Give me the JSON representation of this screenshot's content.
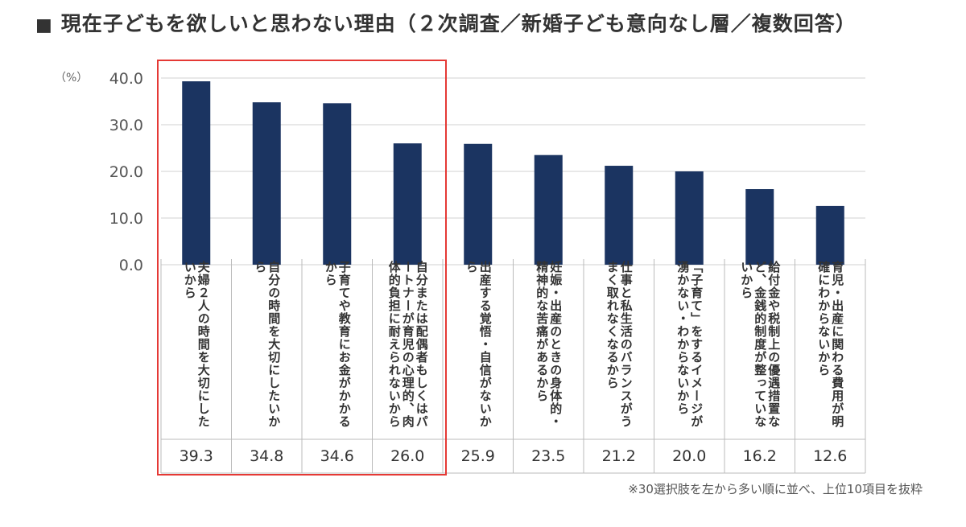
{
  "title": "現在子どもを欲しいと思わない理由（２次調査／新婚子ども意向なし層／複数回答）",
  "title_marker": "■",
  "unit_label": "（%）",
  "footnote": "※30選択肢を左から多い順に並べ、上位10項目を抜粋",
  "colors": {
    "bar": "#1b3461",
    "highlight": "#e53935",
    "grid": "#d0d0d0"
  },
  "highlight_range": [
    0,
    3
  ],
  "chart_data": {
    "type": "bar",
    "ylim": [
      0,
      40
    ],
    "yticks": [
      "0.0",
      "10.0",
      "20.0",
      "30.0",
      "40.0"
    ],
    "grid": true,
    "categories": [
      "夫婦２人の時間を大切にしたいから",
      "自分の時間を大切にしたいから",
      "子育てや教育にお金がかかるから",
      "自分または配偶者もしくはパートナーが育児の心理的、肉体的負担に耐えられないから",
      "出産する覚悟・自信がないから",
      "妊娠・出産のときの身体的・精神的な苦痛があるから",
      "仕事と私生活のバランスがうまく取れなくなるから",
      "「子育て」をするイメージが湧かない・わからないから",
      "給付金や税制上の優遇措置など、金銭的制度が整っていないから",
      "育児・出産に関わる費用が明確にわからないから"
    ],
    "values": [
      39.3,
      34.8,
      34.6,
      26.0,
      25.9,
      23.5,
      21.2,
      20.0,
      16.2,
      12.6
    ],
    "value_labels": [
      "39.3",
      "34.8",
      "34.6",
      "26.0",
      "25.9",
      "23.5",
      "21.2",
      "20.0",
      "16.2",
      "12.6"
    ]
  }
}
